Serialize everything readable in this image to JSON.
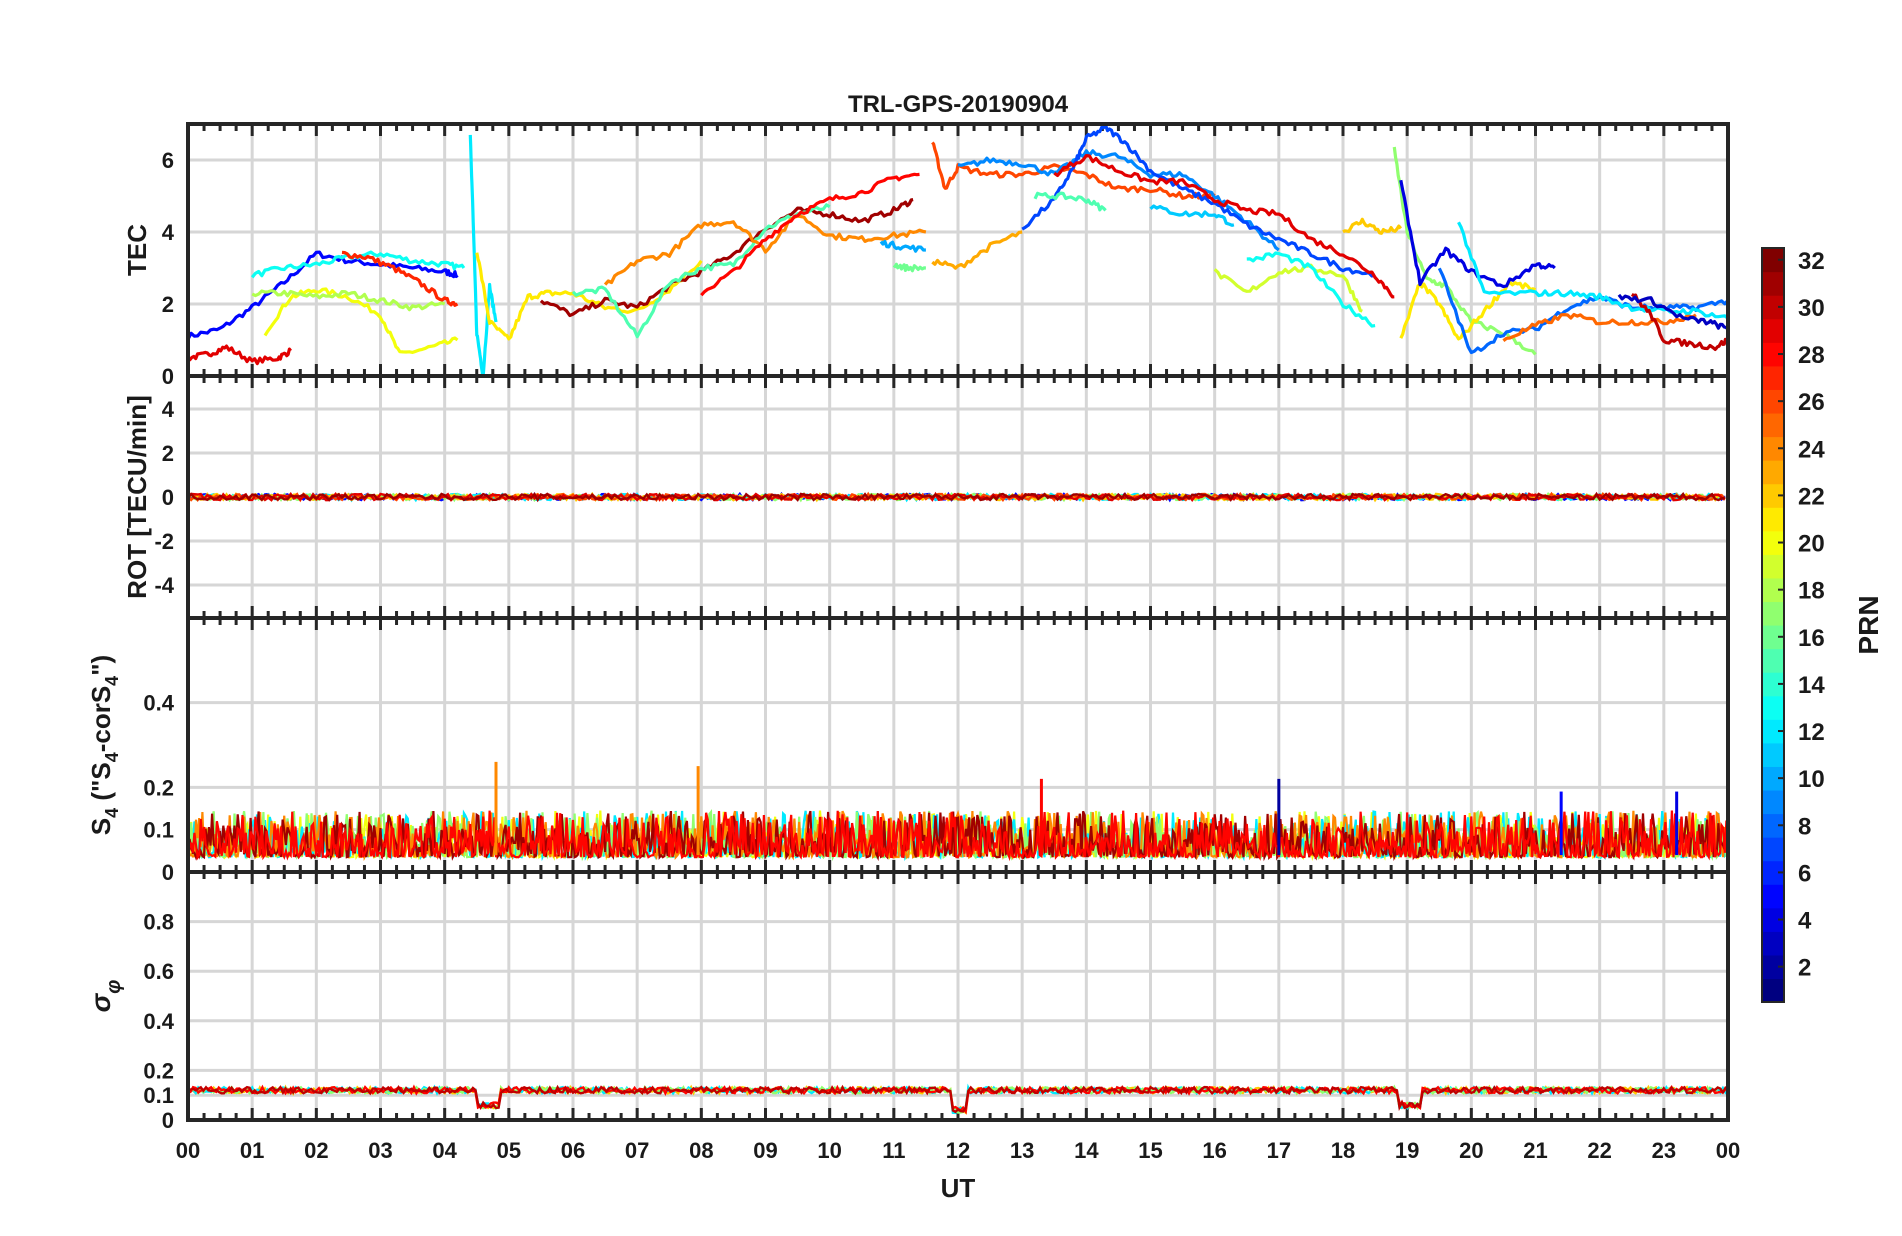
{
  "chart_data": {
    "type": "line",
    "title": "TRL-GPS-20190904",
    "xlabel": "UT",
    "x_ticks": [
      "00",
      "01",
      "02",
      "03",
      "04",
      "05",
      "06",
      "07",
      "08",
      "09",
      "10",
      "11",
      "12",
      "13",
      "14",
      "15",
      "16",
      "17",
      "18",
      "19",
      "20",
      "21",
      "22",
      "23",
      "00"
    ],
    "xlim": [
      0,
      24
    ],
    "colorbar": {
      "label": "PRN",
      "range": [
        1,
        32
      ],
      "ticks": [
        "2",
        "4",
        "6",
        "8",
        "10",
        "12",
        "14",
        "16",
        "18",
        "20",
        "22",
        "24",
        "26",
        "28",
        "30",
        "32"
      ],
      "colormap": "jet"
    },
    "panels": [
      {
        "name": "tec",
        "ylabel": "TEC",
        "ylim": [
          0,
          7
        ],
        "yticks": [
          "0",
          "2",
          "4",
          "6"
        ],
        "series": [
          {
            "prn": 5,
            "x": [
              0,
              0.5,
              1,
              1.5,
              2,
              2.5,
              3,
              3.5,
              4,
              4.2
            ],
            "y": [
              1.1,
              1.3,
              1.9,
              2.6,
              3.4,
              3.2,
              3.1,
              3.0,
              2.9,
              2.8
            ]
          },
          {
            "prn": 29,
            "x": [
              0,
              0.3,
              0.6,
              1,
              1.4,
              1.6
            ],
            "y": [
              0.5,
              0.6,
              0.8,
              0.4,
              0.5,
              0.7
            ]
          },
          {
            "prn": 13,
            "x": [
              1,
              1.5,
              2,
              2.5,
              3,
              3.5,
              4,
              4.3
            ],
            "y": [
              2.8,
              3.0,
              3.1,
              3.3,
              3.4,
              3.2,
              3.1,
              3.0
            ]
          },
          {
            "prn": 20,
            "x": [
              1.2,
              1.6,
              2,
              2.5,
              3,
              3.3,
              3.8,
              4.2
            ],
            "y": [
              1.2,
              2.2,
              2.4,
              2.2,
              1.7,
              0.6,
              0.8,
              1.0
            ]
          },
          {
            "prn": 18,
            "x": [
              1,
              1.5,
              2,
              2.5,
              3,
              3.5,
              4
            ],
            "y": [
              2.3,
              2.3,
              2.2,
              2.3,
              2.1,
              1.9,
              2.0
            ]
          },
          {
            "prn": 27,
            "x": [
              2.4,
              2.8,
              3.2,
              3.6,
              4,
              4.2
            ],
            "y": [
              3.4,
              3.3,
              3.0,
              2.6,
              2.1,
              2.0
            ]
          },
          {
            "prn": 12,
            "x": [
              4.4,
              4.45,
              4.5,
              4.6,
              4.7,
              4.8
            ],
            "y": [
              6.7,
              4.0,
              1.2,
              0.0,
              2.5,
              1.5
            ]
          },
          {
            "prn": 21,
            "x": [
              4.5,
              4.7,
              5,
              5.3,
              5.6,
              6,
              6.5,
              7,
              7.5,
              8
            ],
            "y": [
              3.5,
              1.5,
              1.0,
              2.2,
              2.3,
              2.3,
              1.9,
              1.8,
              2.4,
              3.2
            ]
          },
          {
            "prn": 31,
            "x": [
              5.5,
              6,
              6.5,
              7,
              7.5,
              8,
              8.5,
              9,
              9.5,
              10,
              10.5,
              11,
              11.3
            ],
            "y": [
              2.1,
              1.7,
              2.1,
              1.9,
              2.5,
              2.9,
              3.4,
              4.1,
              4.6,
              4.5,
              4.3,
              4.6,
              4.9
            ]
          },
          {
            "prn": 15,
            "x": [
              6,
              6.5,
              7,
              7.5,
              8,
              8.5,
              9,
              9.5,
              10
            ],
            "y": [
              2.3,
              2.4,
              1.1,
              2.6,
              3.0,
              3.1,
              4.1,
              4.5,
              4.7
            ]
          },
          {
            "prn": 24,
            "x": [
              6.5,
              7,
              7.5,
              8,
              8.5,
              9,
              9.5,
              10,
              10.5,
              11,
              11.5
            ],
            "y": [
              2.5,
              3.2,
              3.4,
              4.2,
              4.3,
              3.5,
              4.5,
              3.9,
              3.8,
              3.9,
              4.0
            ]
          },
          {
            "prn": 28,
            "x": [
              8,
              8.5,
              9,
              9.5,
              10,
              10.5,
              11,
              11.4
            ],
            "y": [
              2.3,
              2.9,
              3.8,
              4.5,
              4.9,
              5.1,
              5.5,
              5.6
            ]
          },
          {
            "prn": 10,
            "x": [
              10.8,
              11.1,
              11.5
            ],
            "y": [
              3.7,
              3.6,
              3.5
            ]
          },
          {
            "prn": 16,
            "x": [
              11,
              11.2,
              11.5
            ],
            "y": [
              3.1,
              3.0,
              3.0
            ]
          },
          {
            "prn": 26,
            "x": [
              11.6,
              11.8,
              12,
              12.5,
              13,
              13.5,
              14,
              14.5,
              15,
              15.5,
              16
            ],
            "y": [
              6.5,
              5.2,
              5.8,
              5.6,
              5.6,
              5.8,
              5.6,
              5.2,
              5.2,
              5.0,
              5.0
            ]
          },
          {
            "prn": 23,
            "x": [
              11.6,
              12,
              12.5,
              13
            ],
            "y": [
              3.2,
              3.0,
              3.6,
              4.0
            ]
          },
          {
            "prn": 9,
            "x": [
              12,
              12.5,
              13,
              13.5,
              14,
              14.5,
              15,
              15.5,
              16,
              16.5,
              17
            ],
            "y": [
              5.8,
              6.0,
              5.9,
              5.6,
              6.2,
              6.1,
              5.6,
              5.6,
              5.0,
              4.3,
              3.5
            ]
          },
          {
            "prn": 7,
            "x": [
              13,
              13.5,
              13.8,
              14,
              14.3,
              14.6,
              15,
              15.5,
              16,
              16.5,
              17,
              17.5,
              18,
              18.5
            ],
            "y": [
              4.1,
              4.9,
              5.8,
              6.6,
              6.9,
              6.5,
              5.7,
              5.2,
              4.8,
              4.2,
              3.8,
              3.4,
              3.0,
              2.8
            ]
          },
          {
            "prn": 15,
            "x": [
              13.2,
              13.6,
              14,
              14.3
            ],
            "y": [
              5.0,
              5.0,
              4.9,
              4.6
            ]
          },
          {
            "prn": 29,
            "x": [
              13.5,
              14,
              14.5,
              15,
              15.5,
              16,
              16.5,
              17,
              17.5,
              18,
              18.5,
              18.8
            ],
            "y": [
              5.6,
              6.1,
              5.7,
              5.4,
              5.4,
              4.9,
              4.6,
              4.5,
              3.8,
              3.4,
              2.8,
              2.2
            ]
          },
          {
            "prn": 11,
            "x": [
              15,
              15.5,
              16,
              16.3
            ],
            "y": [
              4.7,
              4.5,
              4.5,
              4.2
            ]
          },
          {
            "prn": 19,
            "x": [
              16,
              16.5,
              17,
              17.5,
              18,
              18.3
            ],
            "y": [
              2.9,
              2.3,
              2.9,
              3.0,
              2.8,
              1.8
            ]
          },
          {
            "prn": 13,
            "x": [
              16.5,
              17,
              17.5,
              18,
              18.5
            ],
            "y": [
              3.2,
              3.4,
              3.0,
              2.0,
              1.4
            ]
          },
          {
            "prn": 22,
            "x": [
              18,
              18.3,
              18.6,
              18.9
            ],
            "y": [
              4.0,
              4.3,
              4.0,
              4.1
            ]
          },
          {
            "prn": 17,
            "x": [
              18.8,
              19,
              19.3,
              19.6,
              20,
              20.5,
              21
            ],
            "y": [
              6.3,
              4.0,
              2.7,
              2.5,
              1.5,
              1.2,
              0.6
            ]
          },
          {
            "prn": 21,
            "x": [
              18.9,
              19.2,
              19.5,
              19.8,
              20.2,
              20.6,
              21
            ],
            "y": [
              1.0,
              2.6,
              2.0,
              1.0,
              1.8,
              2.6,
              2.4
            ]
          },
          {
            "prn": 4,
            "x": [
              18.9,
              19.2,
              19.6,
              20,
              20.5,
              21,
              21.3
            ],
            "y": [
              5.4,
              2.6,
              3.5,
              2.9,
              2.5,
              3.1,
              3.0
            ]
          },
          {
            "prn": 8,
            "x": [
              19.5,
              20,
              20.5,
              21,
              21.5,
              22,
              22.5,
              23,
              23.5,
              24
            ],
            "y": [
              3.0,
              0.6,
              1.2,
              1.3,
              1.9,
              2.2,
              1.9,
              1.9,
              1.9,
              2.1
            ]
          },
          {
            "prn": 12,
            "x": [
              19.8,
              20.2,
              21,
              21.5,
              22,
              22.5,
              23,
              23.5,
              24
            ],
            "y": [
              4.3,
              2.3,
              2.3,
              2.3,
              2.2,
              1.9,
              1.8,
              1.8,
              1.6
            ]
          },
          {
            "prn": 25,
            "x": [
              20.5,
              21,
              21.5,
              22,
              22.5,
              23,
              23.5
            ],
            "y": [
              1.0,
              1.4,
              1.7,
              1.5,
              1.5,
              1.5,
              1.7
            ]
          },
          {
            "prn": 30,
            "x": [
              22.5,
              22.8,
              23,
              23.4,
              23.8,
              24
            ],
            "y": [
              2.3,
              1.7,
              1.0,
              0.9,
              0.8,
              1.0
            ]
          },
          {
            "prn": 3,
            "x": [
              22.3,
              22.8,
              23.3,
              23.7,
              24
            ],
            "y": [
              2.2,
              2.1,
              1.6,
              1.5,
              1.3
            ]
          }
        ]
      },
      {
        "name": "rot",
        "ylabel": "ROT [TECU/min]",
        "ylim": [
          -5.5,
          5.5
        ],
        "yticks": [
          "-4",
          "-2",
          "0",
          "2",
          "4"
        ],
        "series_description_level": 0.0
      },
      {
        "name": "s4",
        "ylabel": "S4 (\"S4-corS4\")",
        "ylim": [
          0,
          0.6
        ],
        "yticks": [
          "0",
          "0.1",
          "0.2",
          "0.4"
        ],
        "spikes": [
          {
            "prn": 24,
            "x": 4.8,
            "y": 0.26
          },
          {
            "prn": 24,
            "x": 7.95,
            "y": 0.25
          },
          {
            "prn": 28,
            "x": 13.3,
            "y": 0.22
          },
          {
            "prn": 2,
            "x": 17.0,
            "y": 0.22
          },
          {
            "prn": 5,
            "x": 21.4,
            "y": 0.19
          },
          {
            "prn": 4,
            "x": 23.2,
            "y": 0.19
          }
        ]
      },
      {
        "name": "sigma",
        "ylabel": "σ",
        "ylabel_sub": "φ",
        "ylim": [
          0,
          1.0
        ],
        "yticks": [
          "0",
          "0.1",
          "0.2",
          "0.4",
          "0.6",
          "0.8"
        ],
        "baseline": 0.12,
        "dips": [
          {
            "from": 4.5,
            "to": 4.85,
            "y": 0.06
          },
          {
            "from": 11.9,
            "to": 12.15,
            "y": 0.04
          },
          {
            "from": 18.85,
            "to": 19.2,
            "y": 0.06
          }
        ]
      }
    ]
  }
}
